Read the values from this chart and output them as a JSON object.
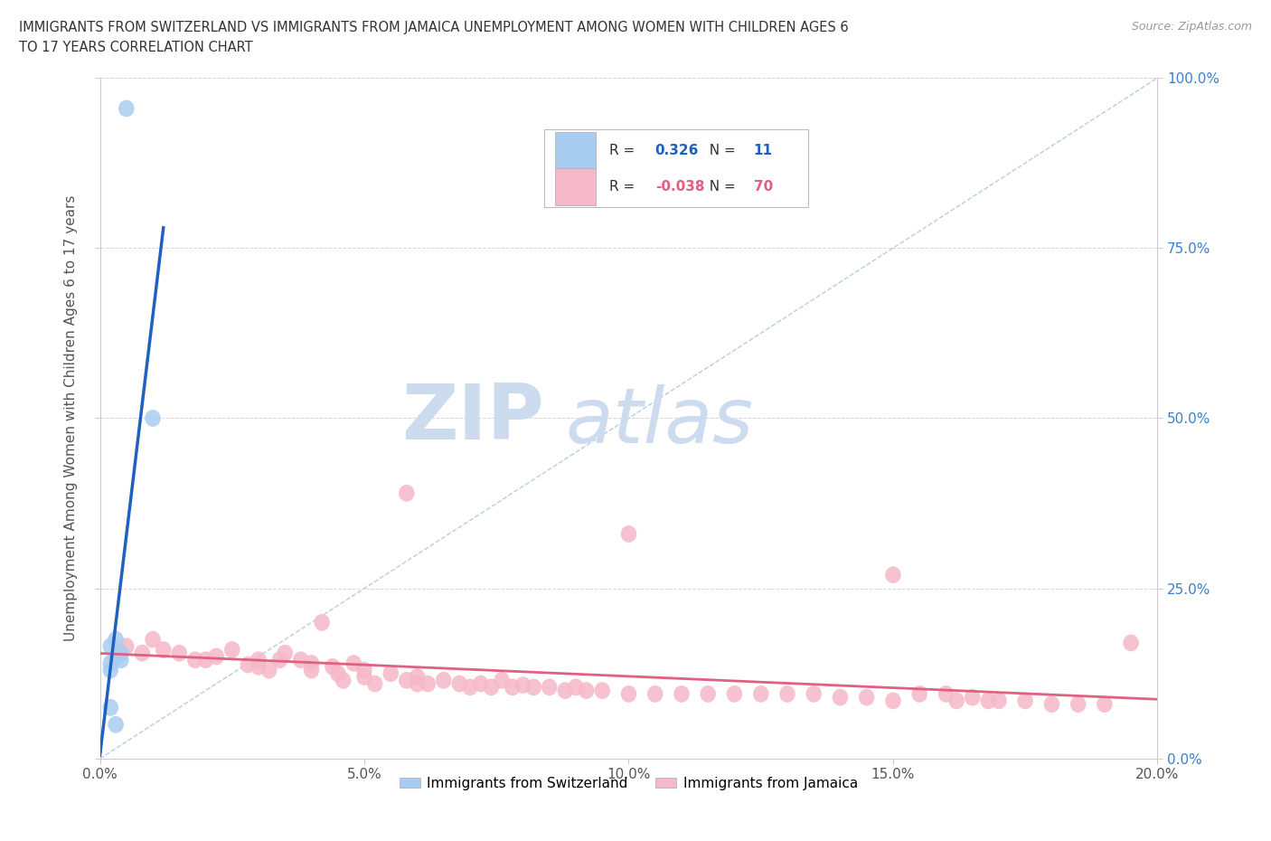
{
  "title_line1": "IMMIGRANTS FROM SWITZERLAND VS IMMIGRANTS FROM JAMAICA UNEMPLOYMENT AMONG WOMEN WITH CHILDREN AGES 6",
  "title_line2": "TO 17 YEARS CORRELATION CHART",
  "source": "Source: ZipAtlas.com",
  "ylabel": "Unemployment Among Women with Children Ages 6 to 17 years",
  "xlim": [
    0.0,
    0.2
  ],
  "ylim": [
    0.0,
    1.0
  ],
  "xticks": [
    0.0,
    0.05,
    0.1,
    0.15,
    0.2
  ],
  "xticklabels": [
    "0.0%",
    "5.0%",
    "10.0%",
    "15.0%",
    "20.0%"
  ],
  "yticks": [
    0.0,
    0.25,
    0.5,
    0.75,
    1.0
  ],
  "yticklabels": [
    "0.0%",
    "25.0%",
    "50.0%",
    "75.0%",
    "100.0%"
  ],
  "switzerland_color": "#a8cdf0",
  "jamaica_color": "#f5b8c8",
  "regression_switzerland_color": "#2060c0",
  "regression_jamaica_color": "#e06080",
  "diagonal_color": "#b0c8e0",
  "R_switzerland": 0.326,
  "N_switzerland": 11,
  "R_jamaica": -0.038,
  "N_jamaica": 70,
  "switzerland_points": [
    [
      0.005,
      0.955
    ],
    [
      0.01,
      0.5
    ],
    [
      0.003,
      0.175
    ],
    [
      0.002,
      0.165
    ],
    [
      0.004,
      0.155
    ],
    [
      0.003,
      0.148
    ],
    [
      0.004,
      0.145
    ],
    [
      0.002,
      0.14
    ],
    [
      0.002,
      0.13
    ],
    [
      0.002,
      0.075
    ],
    [
      0.003,
      0.05
    ]
  ],
  "jamaica_points": [
    [
      0.005,
      0.165
    ],
    [
      0.008,
      0.155
    ],
    [
      0.01,
      0.175
    ],
    [
      0.012,
      0.16
    ],
    [
      0.015,
      0.155
    ],
    [
      0.018,
      0.145
    ],
    [
      0.02,
      0.145
    ],
    [
      0.022,
      0.15
    ],
    [
      0.025,
      0.16
    ],
    [
      0.028,
      0.138
    ],
    [
      0.03,
      0.135
    ],
    [
      0.03,
      0.145
    ],
    [
      0.032,
      0.13
    ],
    [
      0.034,
      0.145
    ],
    [
      0.035,
      0.155
    ],
    [
      0.038,
      0.145
    ],
    [
      0.04,
      0.14
    ],
    [
      0.04,
      0.13
    ],
    [
      0.042,
      0.2
    ],
    [
      0.044,
      0.135
    ],
    [
      0.045,
      0.125
    ],
    [
      0.046,
      0.115
    ],
    [
      0.048,
      0.14
    ],
    [
      0.05,
      0.13
    ],
    [
      0.05,
      0.12
    ],
    [
      0.052,
      0.11
    ],
    [
      0.055,
      0.125
    ],
    [
      0.058,
      0.115
    ],
    [
      0.06,
      0.12
    ],
    [
      0.06,
      0.11
    ],
    [
      0.062,
      0.11
    ],
    [
      0.065,
      0.115
    ],
    [
      0.068,
      0.11
    ],
    [
      0.07,
      0.105
    ],
    [
      0.072,
      0.11
    ],
    [
      0.074,
      0.105
    ],
    [
      0.076,
      0.115
    ],
    [
      0.078,
      0.105
    ],
    [
      0.08,
      0.108
    ],
    [
      0.082,
      0.105
    ],
    [
      0.085,
      0.105
    ],
    [
      0.088,
      0.1
    ],
    [
      0.09,
      0.105
    ],
    [
      0.092,
      0.1
    ],
    [
      0.095,
      0.1
    ],
    [
      0.1,
      0.095
    ],
    [
      0.105,
      0.095
    ],
    [
      0.11,
      0.095
    ],
    [
      0.115,
      0.095
    ],
    [
      0.12,
      0.095
    ],
    [
      0.125,
      0.095
    ],
    [
      0.13,
      0.095
    ],
    [
      0.135,
      0.095
    ],
    [
      0.14,
      0.09
    ],
    [
      0.145,
      0.09
    ],
    [
      0.15,
      0.085
    ],
    [
      0.1,
      0.33
    ],
    [
      0.058,
      0.39
    ],
    [
      0.15,
      0.27
    ],
    [
      0.155,
      0.095
    ],
    [
      0.16,
      0.095
    ],
    [
      0.162,
      0.085
    ],
    [
      0.165,
      0.09
    ],
    [
      0.168,
      0.085
    ],
    [
      0.17,
      0.085
    ],
    [
      0.175,
      0.085
    ],
    [
      0.18,
      0.08
    ],
    [
      0.185,
      0.08
    ],
    [
      0.19,
      0.08
    ],
    [
      0.195,
      0.17
    ]
  ],
  "watermark_zip": "ZIP",
  "watermark_atlas": "atlas",
  "watermark_color": "#ccdcee",
  "legend_switzerland_label": "Immigrants from Switzerland",
  "legend_jamaica_label": "Immigrants from Jamaica",
  "background_color": "#ffffff",
  "grid_color": "#bbbbbb",
  "legend_R_color_swiss": "#2060c0",
  "legend_R_color_jamaica": "#e06080",
  "legend_N_color_swiss": "#2060c0",
  "legend_N_color_jamaica": "#e06080"
}
